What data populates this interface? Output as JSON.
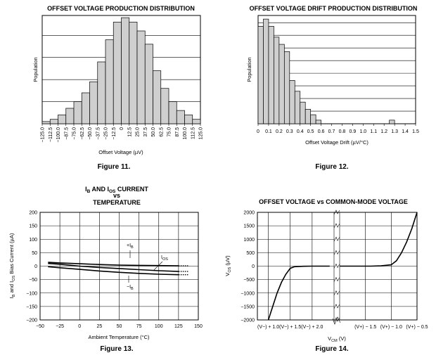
{
  "chart_data": [
    {
      "id": "fig11",
      "type": "bar",
      "title": "OFFSET VOLTAGE PRODUCTION DISTRIBUTION",
      "caption": "Figure 11.",
      "xlabel": "Offset Voltage (µV)",
      "ylabel": "Population",
      "x_tick_labels": [
        "−125.0",
        "−112.5",
        "−100.0",
        "−87.5",
        "−75.0",
        "−62.5",
        "−50.0",
        "−37.5",
        "−25.0",
        "−12.5",
        "0",
        "12.5",
        "25.0",
        "37.5",
        "50.0",
        "62.5",
        "75.0",
        "87.5",
        "100.0",
        "112.5",
        "125.0"
      ],
      "values": [
        0.5,
        1,
        2,
        3.5,
        5,
        7,
        9.5,
        14,
        19,
        23,
        24,
        23,
        21,
        18,
        12,
        8,
        5,
        3,
        2,
        1
      ],
      "ylim": [
        0,
        24.5
      ],
      "y_gridlines": [
        5,
        10,
        15,
        20
      ]
    },
    {
      "id": "fig12",
      "type": "bar",
      "title": "OFFSET VOLTAGE DRIFT PRODUCTION DISTRIBUTION",
      "caption": "Figure 12.",
      "xlabel": "Offset Voltage Drift (µV/°C)",
      "ylabel": "Population",
      "x_tick_labels": [
        "0",
        "0.1",
        "0.2",
        "0.3",
        "0.4",
        "0.5",
        "0.6",
        "0.7",
        "0.8",
        "0.9",
        "1.0",
        "1.1",
        "1.2",
        "1.3",
        "1.4",
        "1.5"
      ],
      "bin_width": 0.05,
      "bins": [
        {
          "x": 0.0,
          "v": 27
        },
        {
          "x": 0.05,
          "v": 29
        },
        {
          "x": 0.1,
          "v": 27
        },
        {
          "x": 0.15,
          "v": 24
        },
        {
          "x": 0.2,
          "v": 22
        },
        {
          "x": 0.25,
          "v": 20
        },
        {
          "x": 0.3,
          "v": 12
        },
        {
          "x": 0.35,
          "v": 9
        },
        {
          "x": 0.4,
          "v": 6
        },
        {
          "x": 0.45,
          "v": 4
        },
        {
          "x": 0.5,
          "v": 2.5
        },
        {
          "x": 0.55,
          "v": 1
        },
        {
          "x": 1.25,
          "v": 1
        }
      ],
      "xlim": [
        0,
        1.5
      ],
      "ylim": [
        0,
        30
      ],
      "y_gridlines": [
        3.5,
        7,
        10.5,
        14,
        17.5,
        21,
        24.5,
        28
      ]
    },
    {
      "id": "fig13",
      "type": "line",
      "title_lines": [
        "AND",
        "CURRENT",
        "vs",
        "TEMPERATURE"
      ],
      "title_terms": [
        {
          "main": "I",
          "sub": "B"
        },
        {
          "main": "I",
          "sub": "OS"
        }
      ],
      "caption": "Figure 13.",
      "xlabel": "Ambient Temperature (°C)",
      "ylabel_terms": [
        {
          "main": "I",
          "sub": "B"
        },
        {
          "main": "I",
          "sub": "OS"
        }
      ],
      "ylabel_parts": [
        "and",
        "Bias Current (µA)"
      ],
      "xlim": [
        -50,
        150
      ],
      "ylim": [
        -200,
        200
      ],
      "x_ticks": [
        -50,
        -25,
        0,
        25,
        50,
        75,
        100,
        125,
        150
      ],
      "y_ticks": [
        -200,
        -150,
        -100,
        -50,
        0,
        50,
        100,
        150,
        200
      ],
      "series": [
        {
          "name": "IB+",
          "x": [
            -40,
            -25,
            0,
            25,
            50,
            75,
            100,
            125
          ],
          "y": [
            14,
            12,
            9,
            6,
            4,
            3,
            2,
            1
          ]
        },
        {
          "name": "IOS",
          "x": [
            -40,
            -25,
            0,
            25,
            50,
            75,
            100,
            125
          ],
          "y": [
            10,
            7,
            0,
            -5,
            -9,
            -13,
            -17,
            -20
          ]
        },
        {
          "name": "IB-",
          "x": [
            -40,
            -25,
            0,
            25,
            50,
            75,
            100,
            125
          ],
          "y": [
            -2,
            -6,
            -12,
            -18,
            -23,
            -27,
            -30,
            -32
          ]
        }
      ],
      "annotations": [
        {
          "main": "+I",
          "sub": "B"
        },
        {
          "main": "I",
          "sub": "OS"
        },
        {
          "main": "−I",
          "sub": "B"
        }
      ]
    },
    {
      "id": "fig14",
      "type": "line",
      "title": "OFFSET VOLTAGE vs COMMON-MODE VOLTAGE",
      "caption": "Figure 14.",
      "xlabel_main": "V",
      "xlabel_sub": "CM",
      "xlabel_unit": "(V)",
      "ylabel_main": "V",
      "ylabel_sub": "OS",
      "ylabel_unit": "(µV)",
      "ylim": [
        -2000,
        2000
      ],
      "y_ticks": [
        -2000,
        -1500,
        -1000,
        -500,
        0,
        500,
        1000,
        1500,
        2000
      ],
      "x_tick_labels": [
        "(V−) + 1.0",
        "(V−) + 1.5",
        "(V−) + 2.0",
        "(V+) − 1.5",
        "(V+) − 1.0",
        "(V+) − 0.5"
      ],
      "left_segment": {
        "x": [
          1.0,
          1.1,
          1.2,
          1.3,
          1.4,
          1.5,
          1.6,
          1.8,
          2.0,
          2.4
        ],
        "y": [
          -2000,
          -1500,
          -1000,
          -600,
          -300,
          -80,
          -20,
          -5,
          0,
          0
        ]
      },
      "right_segment": {
        "x": [
          -2.0,
          -1.4,
          -1.2,
          -1.0,
          -0.9,
          -0.8,
          -0.7,
          -0.6,
          -0.5
        ],
        "y": [
          0,
          0,
          10,
          50,
          200,
          500,
          900,
          1400,
          2000
        ]
      }
    }
  ]
}
